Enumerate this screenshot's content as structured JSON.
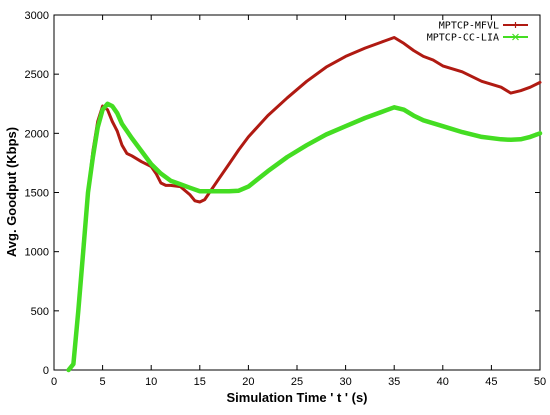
{
  "chart_data": {
    "type": "line",
    "title": "",
    "xlabel": "Simulation Time ' t ' (s)",
    "ylabel": "Avg. Goodput (Kbps)",
    "xlim": [
      0,
      50
    ],
    "ylim": [
      0,
      3000
    ],
    "xticks": [
      0,
      5,
      10,
      15,
      20,
      25,
      30,
      35,
      40,
      45,
      50
    ],
    "yticks": [
      0,
      500,
      1000,
      1500,
      2000,
      2500,
      3000
    ],
    "grid": false,
    "legend_position": "top-right",
    "series": [
      {
        "name": "MPTCP-MFVL",
        "color": "#b01a12",
        "marker": "plus",
        "x": [
          1.5,
          2,
          2.5,
          3,
          3.5,
          4,
          4.5,
          5,
          5.5,
          6,
          6.5,
          7,
          7.5,
          8,
          9,
          10,
          10.5,
          11,
          11.5,
          12,
          13,
          14,
          14.5,
          15,
          15.5,
          16,
          17,
          18,
          19,
          20,
          22,
          24,
          26,
          28,
          30,
          32,
          34,
          35,
          36,
          37,
          38,
          39,
          40,
          42,
          44,
          46,
          47,
          48,
          49,
          50
        ],
        "y": [
          0,
          50,
          500,
          1050,
          1500,
          1850,
          2100,
          2230,
          2200,
          2100,
          2020,
          1900,
          1830,
          1810,
          1760,
          1720,
          1660,
          1580,
          1560,
          1560,
          1550,
          1480,
          1430,
          1420,
          1440,
          1500,
          1620,
          1740,
          1860,
          1970,
          2150,
          2300,
          2440,
          2560,
          2650,
          2720,
          2780,
          2810,
          2760,
          2700,
          2650,
          2620,
          2570,
          2520,
          2440,
          2390,
          2340,
          2360,
          2390,
          2430
        ]
      },
      {
        "name": "MPTCP-CC-LIA",
        "color": "#44dd22",
        "marker": "cross",
        "x": [
          1.5,
          2,
          2.5,
          3,
          3.5,
          4,
          4.5,
          5,
          5.5,
          6,
          6.5,
          7,
          8,
          9,
          10,
          11,
          12,
          13,
          14,
          15,
          16,
          17,
          18,
          19,
          20,
          22,
          24,
          26,
          28,
          30,
          32,
          34,
          35,
          36,
          37,
          38,
          40,
          42,
          44,
          46,
          47,
          48,
          49,
          50
        ],
        "y": [
          0,
          50,
          500,
          1000,
          1500,
          1800,
          2050,
          2200,
          2250,
          2230,
          2170,
          2080,
          1960,
          1850,
          1740,
          1660,
          1600,
          1570,
          1540,
          1510,
          1510,
          1510,
          1510,
          1515,
          1550,
          1680,
          1800,
          1900,
          1990,
          2060,
          2130,
          2190,
          2220,
          2200,
          2150,
          2110,
          2060,
          2010,
          1970,
          1950,
          1945,
          1950,
          1970,
          2000
        ]
      }
    ]
  }
}
